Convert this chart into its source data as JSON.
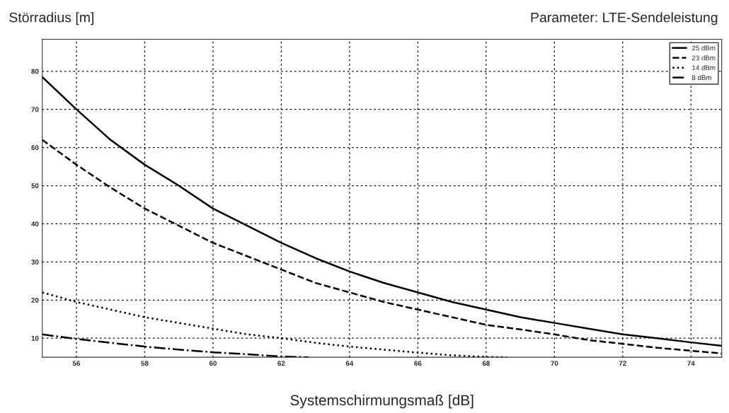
{
  "chart_data": {
    "type": "line",
    "title": "Parameter: LTE-Sendeleistung",
    "ylabel": "Störradius [m]",
    "xlabel": "Systemschirmungsmaß [dB]",
    "xlim": [
      55,
      74.9
    ],
    "ylim": [
      5,
      88.4
    ],
    "xticks": [
      56,
      58,
      60,
      62,
      64,
      66,
      68,
      70,
      72,
      74
    ],
    "yticks": [
      10,
      20,
      30,
      40,
      50,
      60,
      70,
      80
    ],
    "grid": true,
    "legend": "top right",
    "series": [
      {
        "name": "25 dBm",
        "color": "#000000",
        "line_style": "solid",
        "x": [
          55,
          56,
          57,
          58,
          59,
          60,
          61,
          62,
          63,
          64,
          65,
          66,
          67,
          68,
          69,
          70,
          71,
          72,
          73,
          74,
          74.9
        ],
        "values": [
          78.5,
          70,
          62,
          55.5,
          50,
          44,
          39.5,
          35,
          31,
          27.5,
          24.5,
          22,
          19.5,
          17.5,
          15.5,
          14,
          12.5,
          11,
          10,
          8.9,
          8
        ]
      },
      {
        "name": "23 dBm",
        "color": "#000000",
        "line_style": "dashed",
        "x": [
          55,
          56,
          57,
          58,
          59,
          60,
          61,
          62,
          63,
          64,
          65,
          66,
          67,
          68,
          69,
          70,
          71,
          72,
          73,
          74,
          74.9
        ],
        "values": [
          62,
          55.5,
          49.5,
          44,
          39.5,
          35,
          31.5,
          28,
          24.5,
          22,
          19.5,
          17.5,
          15.5,
          13.5,
          12.3,
          11,
          9.5,
          8.5,
          7.5,
          6.7,
          6
        ]
      },
      {
        "name": "14 dBm",
        "color": "#000000",
        "line_style": "dotted",
        "x": [
          55,
          56,
          57,
          58,
          59,
          60,
          61,
          62,
          63,
          64,
          65,
          66,
          67,
          68,
          68.6
        ],
        "values": [
          22,
          19.5,
          17.5,
          15.5,
          14,
          12.5,
          11,
          10,
          8.8,
          7.8,
          7,
          6.2,
          5.5,
          5.1,
          5
        ]
      },
      {
        "name": "8 dBm",
        "color": "#000000",
        "line_style": "dashdot",
        "x": [
          55,
          56,
          57,
          58,
          59,
          60,
          61,
          62,
          62.8
        ],
        "values": [
          11,
          9.8,
          8.8,
          7.8,
          7,
          6.3,
          5.8,
          5.2,
          5
        ]
      }
    ]
  }
}
